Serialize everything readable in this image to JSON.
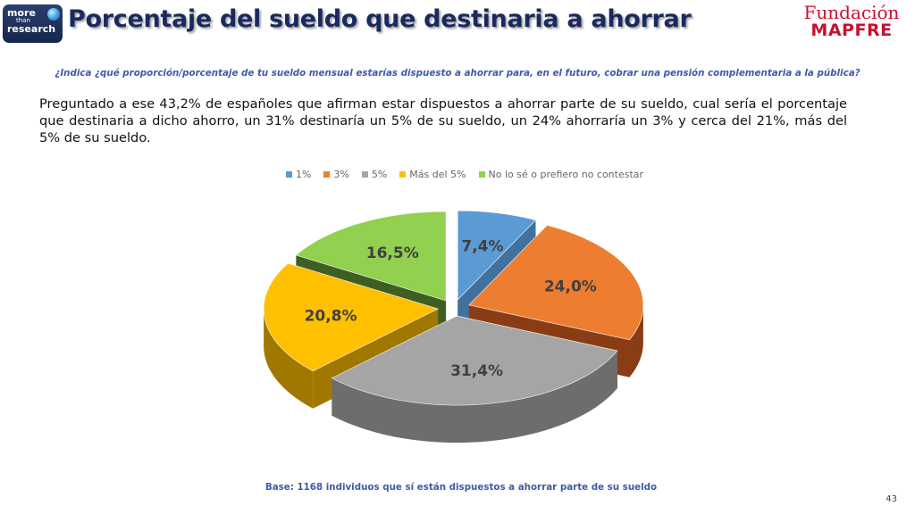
{
  "header": {
    "logo_line1": "more",
    "logo_line2": "than",
    "logo_line3": "research",
    "title": "Porcentaje del sueldo que destinaria a ahorrar",
    "fund_line1": "Fundación",
    "fund_line2": "MAPFRE"
  },
  "question": "¿Indica ¿qué proporción/porcentaje de tu sueldo mensual estarías dispuesto a ahorrar para, en el futuro, cobrar una pensión complementaria a la pública?",
  "paragraph": "Preguntado a ese 43,2% de españoles que afirman estar dispuestos a ahorrar parte de su sueldo, cual sería el porcentaje que destinaria a dicho ahorro, un 31% destinaría un 5% de su sueldo, un 24% ahorraría un 3% y cerca del 21%, más del 5% de su sueldo.",
  "base_note": "Base: 1168 individuos que sí están dispuestos a ahorrar parte de su sueldo",
  "page_number": "43",
  "chart_data": {
    "type": "pie",
    "title": "",
    "legend_position": "top",
    "exploded": true,
    "three_d": true,
    "series": [
      {
        "name": "1%",
        "value": 7.4,
        "label": "7,4%",
        "color": "#5b9bd5",
        "side_color": "#41719c"
      },
      {
        "name": "3%",
        "value": 24.0,
        "label": "24,0%",
        "color": "#ed7d31",
        "side_color": "#8a3d14"
      },
      {
        "name": "5%",
        "value": 31.4,
        "label": "31,4%",
        "color": "#a5a5a5",
        "side_color": "#6d6d6d"
      },
      {
        "name": "Más del 5%",
        "value": 20.8,
        "label": "20,8%",
        "color": "#ffc000",
        "side_color": "#a07800"
      },
      {
        "name": "No lo sé o prefiero no contestar",
        "value": 16.5,
        "label": "16,5%",
        "color": "#92d050",
        "side_color": "#3f5f22"
      }
    ]
  }
}
